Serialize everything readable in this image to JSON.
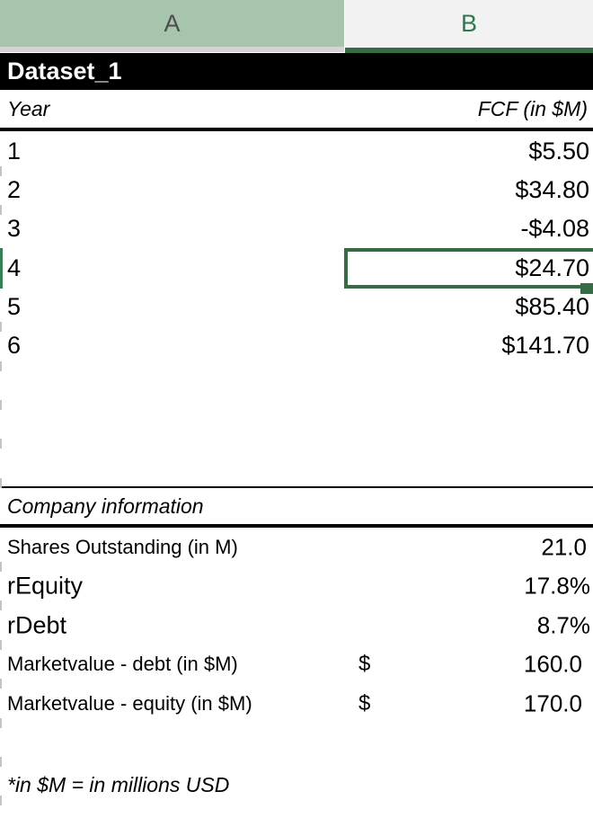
{
  "columns": {
    "a": "A",
    "b": "B"
  },
  "banner": {
    "title": "Dataset_1"
  },
  "fcf_table": {
    "year_header": "Year",
    "fcf_header": "FCF (in $M)",
    "rows": [
      {
        "year": "1",
        "fcf": "$5.50"
      },
      {
        "year": "2",
        "fcf": "$34.80"
      },
      {
        "year": "3",
        "fcf": "-$4.08"
      },
      {
        "year": "4",
        "fcf": "$24.70"
      },
      {
        "year": "5",
        "fcf": "$85.40"
      },
      {
        "year": "6",
        "fcf": "$141.70"
      }
    ],
    "selection": {
      "selected_row_year": "4",
      "selected_cell_value": "$24.70",
      "selected_column": "B"
    }
  },
  "company_info": {
    "header": "Company information",
    "rows": [
      {
        "label": "Shares Outstanding (in M)",
        "currency": "",
        "value": "21.0"
      },
      {
        "label": "rEquity",
        "currency": "",
        "value": "17.8%"
      },
      {
        "label": "rDebt",
        "currency": "",
        "value": "8.7%"
      },
      {
        "label": "Marketvalue - debt (in $M)",
        "currency": "$",
        "value": "160.0"
      },
      {
        "label": "Marketvalue - equity (in $M)",
        "currency": "$",
        "value": "170.0"
      }
    ]
  },
  "footnote": "*in $M = in millions USD",
  "colors": {
    "column_a_header_bg": "#a7c5ac",
    "column_a_letter": "#4d4d4d",
    "column_b_header_bg": "#f2f2f2",
    "column_b_letter": "#2c7a4c",
    "selection_green": "#366b43",
    "banner_bg": "#000000",
    "banner_text": "#ffffff"
  }
}
